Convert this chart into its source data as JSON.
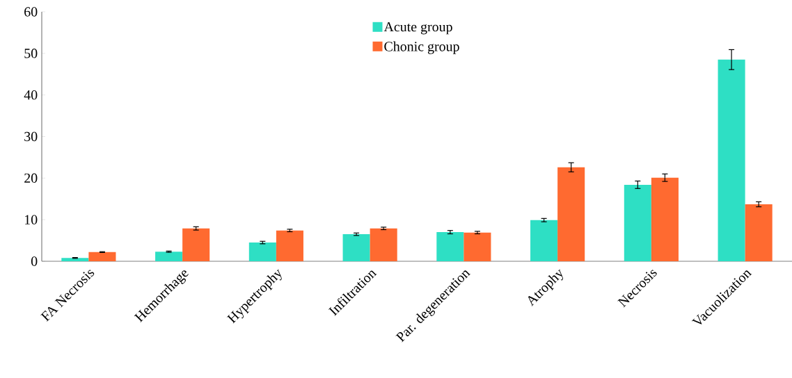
{
  "chart_data": {
    "type": "bar",
    "categories": [
      "FA Necrosis",
      "Hemorrhage",
      "Hypertrophy",
      "Infiltration",
      "Par. degeneration",
      "Atrophy",
      "Necrosis",
      "Vacuolization"
    ],
    "series": [
      {
        "name": "Acute group",
        "color": "#2edfc4",
        "values": [
          0.8,
          2.3,
          4.5,
          6.5,
          7.0,
          9.9,
          18.4,
          48.5
        ],
        "errors": [
          0.1,
          0.15,
          0.3,
          0.3,
          0.4,
          0.4,
          0.9,
          2.4
        ]
      },
      {
        "name": "Chonic group",
        "color": "#ff6a30",
        "values": [
          2.2,
          7.9,
          7.4,
          7.9,
          6.9,
          22.6,
          20.1,
          13.7
        ],
        "errors": [
          0.1,
          0.4,
          0.3,
          0.3,
          0.3,
          1.1,
          0.9,
          0.6
        ]
      }
    ],
    "ylim": [
      0,
      60
    ],
    "yticks": [
      0,
      10,
      20,
      30,
      40,
      50,
      60
    ],
    "grid": false,
    "legend": "top"
  }
}
